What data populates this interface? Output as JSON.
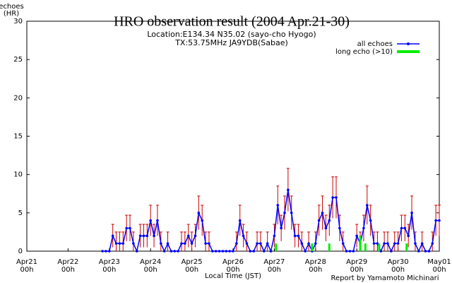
{
  "chart_data": {
    "type": "line",
    "title": "HRO observation result (2004 Apr.21-30)",
    "subtitle": [
      "Location:E134.34 N35.02 (sayo-cho Hyogo)",
      "TX:53.75MHz JA9YDB(Sabae)"
    ],
    "y_label": [
      "echoes",
      "(HR)"
    ],
    "x_label": "Local Time (JST)",
    "credit": "Report by Yamamoto Michinari",
    "xlim": [
      0,
      240
    ],
    "xticks": [
      {
        "value": 0,
        "label": "Apr21 00h"
      },
      {
        "value": 24,
        "label": "Apr22 00h"
      },
      {
        "value": 48,
        "label": "Apr23 00h"
      },
      {
        "value": 72,
        "label": "Apr24 00h"
      },
      {
        "value": 96,
        "label": "Apr25 00h"
      },
      {
        "value": 120,
        "label": "Apr26 00h"
      },
      {
        "value": 144,
        "label": "Apr27 00h"
      },
      {
        "value": 168,
        "label": "Apr28 00h"
      },
      {
        "value": 192,
        "label": "Apr29 00h"
      },
      {
        "value": 216,
        "label": "Apr30 00h"
      },
      {
        "value": 240,
        "label": "May01 00h"
      }
    ],
    "ylim": [
      0,
      30
    ],
    "yticks": [
      0,
      5,
      10,
      15,
      20,
      25,
      30
    ],
    "legend": "top-right",
    "error_color": "#cc0000",
    "series": [
      {
        "name": "all echoes",
        "color": "#0000ff",
        "x": [
          44,
          46,
          48,
          50,
          52,
          54,
          56,
          58,
          60,
          62,
          64,
          66,
          68,
          70,
          72,
          74,
          76,
          78,
          80,
          82,
          84,
          86,
          88,
          90,
          92,
          94,
          96,
          98,
          100,
          102,
          104,
          106,
          108,
          110,
          112,
          114,
          116,
          118,
          120,
          122,
          124,
          126,
          128,
          130,
          132,
          134,
          136,
          138,
          140,
          142,
          144,
          146,
          148,
          150,
          152,
          154,
          156,
          158,
          160,
          162,
          164,
          166,
          168,
          170,
          172,
          174,
          176,
          178,
          180,
          182,
          184,
          186,
          188,
          190,
          192,
          194,
          196,
          198,
          200,
          202,
          204,
          206,
          208,
          210,
          212,
          214,
          216,
          218,
          220,
          222,
          224,
          226,
          228,
          230,
          232,
          234,
          236,
          238,
          240
        ],
        "values": [
          0,
          0,
          0,
          2,
          1,
          1,
          1,
          3,
          3,
          1,
          0,
          2,
          2,
          2,
          4,
          2,
          4,
          1,
          0,
          1,
          0,
          0,
          0,
          1,
          1,
          2,
          1,
          2,
          5,
          4,
          1,
          1,
          0,
          0,
          0,
          0,
          0,
          0,
          0,
          1,
          4,
          2,
          1,
          0,
          0,
          1,
          1,
          0,
          1,
          0,
          2,
          6,
          3,
          5,
          8,
          5,
          2,
          2,
          1,
          0,
          1,
          0,
          1,
          4,
          5,
          3,
          4,
          7,
          7,
          3,
          1,
          0,
          0,
          0,
          2,
          1,
          3,
          6,
          4,
          1,
          1,
          0,
          1,
          1,
          0,
          1,
          1,
          3,
          3,
          2,
          5,
          1,
          0,
          1,
          0,
          0,
          1,
          4,
          4
        ],
        "errors": [
          0,
          0,
          0,
          1.5,
          1.5,
          1.5,
          1.5,
          1.7,
          1.7,
          1.5,
          0,
          1.5,
          1.5,
          1.5,
          2,
          1.5,
          2,
          1.5,
          0,
          1.5,
          0,
          0,
          0,
          1.5,
          1.5,
          1.5,
          1.5,
          1.5,
          2.2,
          2,
          1.5,
          1.5,
          0,
          0,
          0,
          0,
          0,
          0,
          0,
          1.5,
          2,
          1.5,
          1.5,
          0,
          0,
          1.5,
          1.5,
          0,
          1.5,
          0,
          1.5,
          2.5,
          1.7,
          2.2,
          2.8,
          2.2,
          1.5,
          1.5,
          1.5,
          0,
          1.5,
          0,
          1.5,
          2,
          2.2,
          1.7,
          2,
          2.7,
          2.7,
          1.7,
          1.5,
          0,
          0,
          0,
          1.5,
          1.5,
          1.7,
          2.5,
          2,
          1.5,
          1.5,
          0,
          1.5,
          1.5,
          0,
          1.5,
          1.5,
          1.7,
          1.7,
          1.5,
          2.2,
          1.5,
          0,
          1.5,
          0,
          0,
          1.5,
          2,
          2
        ]
      },
      {
        "name": "long echo (>10)",
        "color": "#00ee00",
        "x": [
          145,
          166,
          176,
          194,
          197,
          205,
          221
        ],
        "values": [
          1,
          1,
          1,
          2,
          1,
          1,
          1
        ]
      }
    ]
  }
}
